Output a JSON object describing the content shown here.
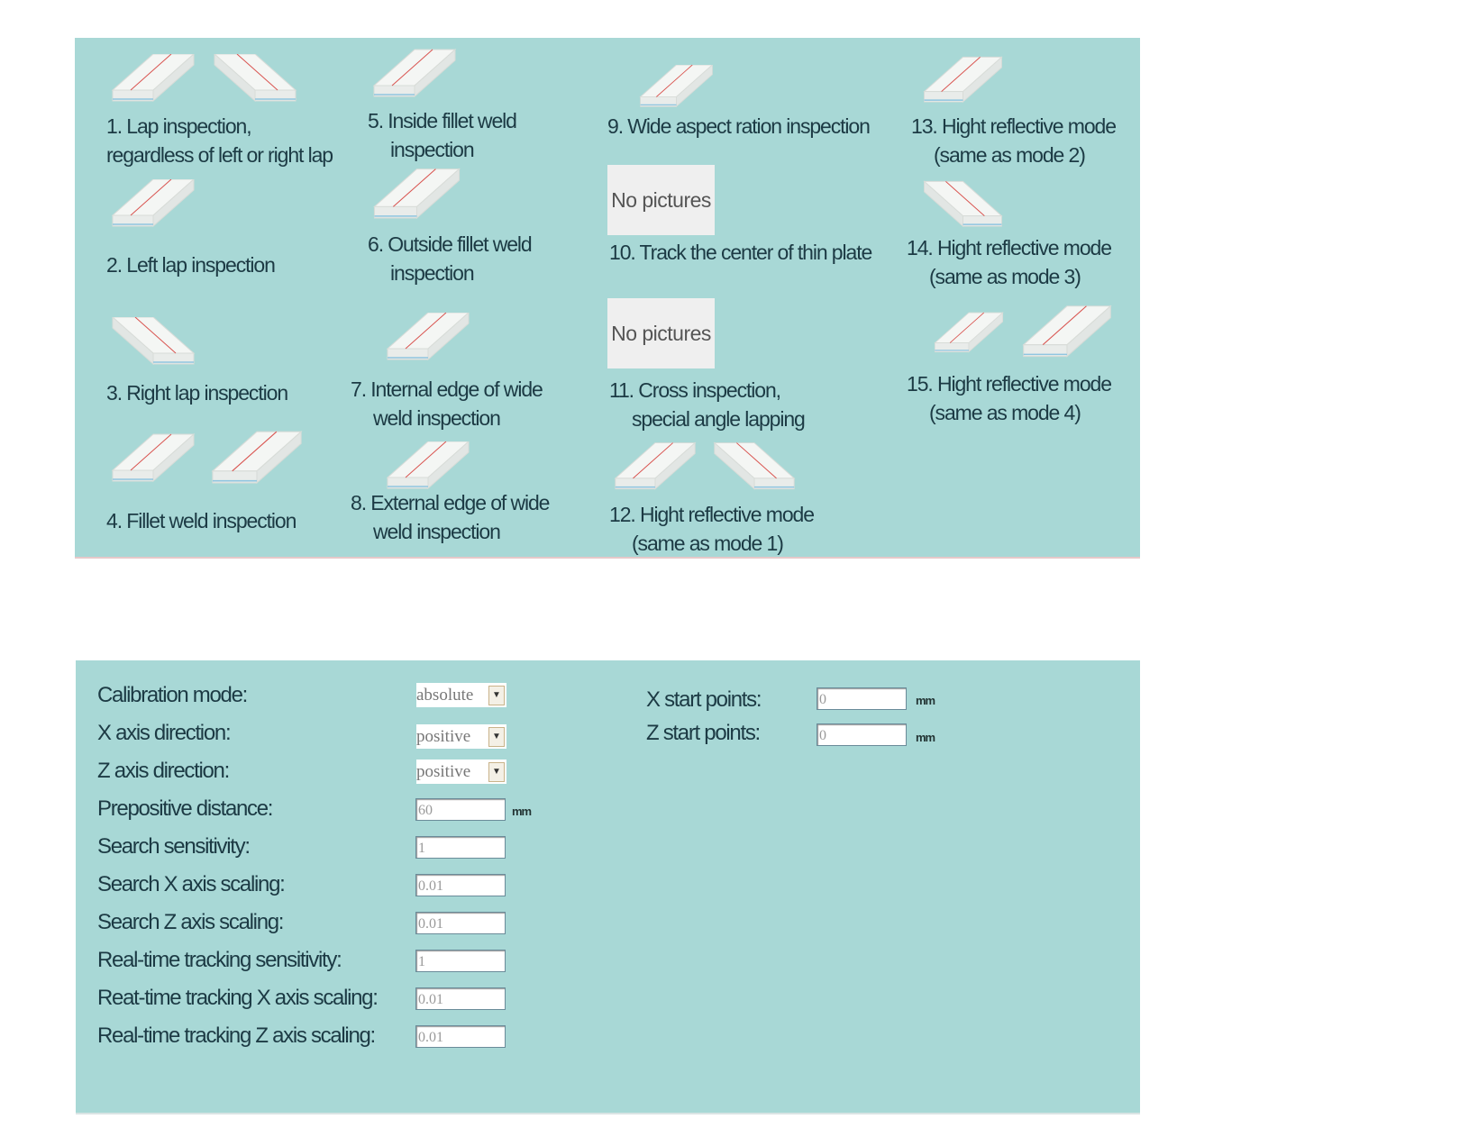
{
  "modes": [
    {
      "lines": [
        "1. Lap inspection,",
        "regardless of left or right lap"
      ]
    },
    {
      "lines": [
        "2. Left lap inspection"
      ]
    },
    {
      "lines": [
        "3. Right lap inspection"
      ]
    },
    {
      "lines": [
        "4. Fillet weld inspection"
      ]
    },
    {
      "lines": [
        "5. Inside fillet weld",
        "inspection"
      ]
    },
    {
      "lines": [
        "6. Outside fillet weld",
        "inspection"
      ]
    },
    {
      "lines": [
        "7. Internal edge of wide",
        "weld inspection"
      ]
    },
    {
      "lines": [
        "8. External edge of wide",
        "weld inspection"
      ]
    },
    {
      "lines": [
        "9. Wide aspect ration inspection"
      ]
    },
    {
      "lines": [
        "10. Track the center of thin plate"
      ],
      "placeholder": "No pictures"
    },
    {
      "lines": [
        "11. Cross inspection,",
        "special angle lapping"
      ],
      "placeholder": "No pictures"
    },
    {
      "lines": [
        "12. Hight reflective mode",
        "(same as mode 1)"
      ]
    },
    {
      "lines": [
        "13. Hight reflective mode",
        "(same as mode 2)"
      ]
    },
    {
      "lines": [
        "14. Hight reflective mode",
        "(same as mode 3)"
      ]
    },
    {
      "lines": [
        "15. Hight reflective mode",
        "(same as mode 4)"
      ]
    }
  ],
  "calibration": {
    "fields": [
      {
        "label": "Calibration mode:",
        "value": "absolute",
        "type": "select"
      },
      {
        "label": "X axis direction:",
        "value": "positive",
        "type": "select"
      },
      {
        "label": "Z axis direction:",
        "value": "positive",
        "type": "select"
      },
      {
        "label": "Prepositive distance:",
        "value": "60",
        "type": "input",
        "unit": "mm"
      },
      {
        "label": "Search sensitivity:",
        "value": "1",
        "type": "input"
      },
      {
        "label": "Search X axis scaling:",
        "value": "0.01",
        "type": "input"
      },
      {
        "label": "Search Z axis scaling:",
        "value": "0.01",
        "type": "input"
      },
      {
        "label": "Real-time tracking sensitivity:",
        "value": "1",
        "type": "input"
      },
      {
        "label": "Reat-time tracking X axis scaling:",
        "value": "0.01",
        "type": "input"
      },
      {
        "label": "Real-time tracking Z axis scaling:",
        "value": "0.01",
        "type": "input"
      }
    ],
    "start_points": [
      {
        "label": "X start points:",
        "value": "0",
        "unit": "mm"
      },
      {
        "label": "Z start points:",
        "value": "0",
        "unit": "mm"
      }
    ]
  },
  "colors": {
    "panel_bg": "#a8d8d6",
    "text": "#1c3a44",
    "weld_line": "#d9534f"
  }
}
